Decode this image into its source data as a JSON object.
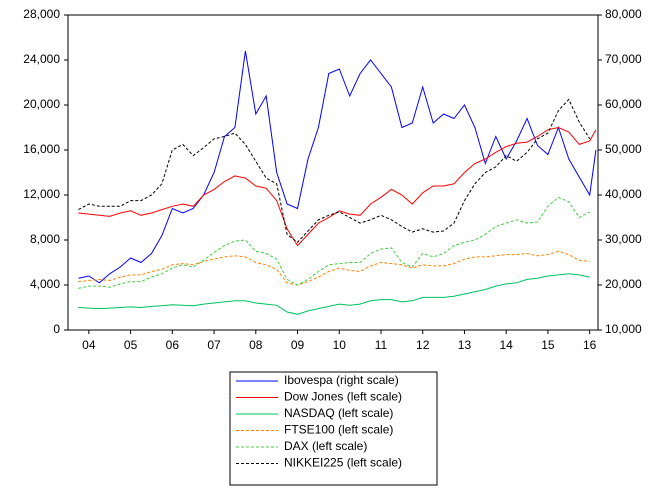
{
  "chart_data": {
    "type": "line",
    "x": [
      2003.75,
      2004,
      2004.25,
      2004.5,
      2004.75,
      2005,
      2005.25,
      2005.5,
      2005.75,
      2006,
      2006.25,
      2006.5,
      2006.75,
      2007,
      2007.25,
      2007.5,
      2007.75,
      2008,
      2008.25,
      2008.5,
      2008.75,
      2009,
      2009.25,
      2009.5,
      2009.75,
      2010,
      2010.25,
      2010.5,
      2010.75,
      2011,
      2011.25,
      2011.5,
      2011.75,
      2012,
      2012.25,
      2012.5,
      2012.75,
      2013,
      2013.25,
      2013.5,
      2013.75,
      2014,
      2014.25,
      2014.5,
      2014.75,
      2015,
      2015.25,
      2015.5,
      2015.75,
      2016,
      2016.15
    ],
    "xlim": [
      2003.5,
      2016.2
    ],
    "xticks": [
      {
        "value": 2004,
        "label": "04"
      },
      {
        "value": 2005,
        "label": "05"
      },
      {
        "value": 2006,
        "label": "06"
      },
      {
        "value": 2007,
        "label": "07"
      },
      {
        "value": 2008,
        "label": "08"
      },
      {
        "value": 2009,
        "label": "09"
      },
      {
        "value": 2010,
        "label": "10"
      },
      {
        "value": 2011,
        "label": "11"
      },
      {
        "value": 2012,
        "label": "12"
      },
      {
        "value": 2013,
        "label": "13"
      },
      {
        "value": 2014,
        "label": "14"
      },
      {
        "value": 2015,
        "label": "15"
      },
      {
        "value": 2016,
        "label": "16"
      }
    ],
    "ylim": [
      0,
      28000
    ],
    "yticks": [
      0,
      {
        "value": 4000,
        "label": "4,000"
      },
      {
        "value": 8000,
        "label": "8,000"
      },
      {
        "value": 12000,
        "label": "12,000"
      },
      {
        "value": 16000,
        "label": "16,000"
      },
      {
        "value": 20000,
        "label": "20,000"
      },
      {
        "value": 24000,
        "label": "24,000"
      },
      {
        "value": 28000,
        "label": "28,000"
      }
    ],
    "y2lim": [
      10000,
      80000
    ],
    "y2ticks": [
      {
        "value": 10000,
        "label": "10,000"
      },
      {
        "value": 20000,
        "label": "20,000"
      },
      {
        "value": 30000,
        "label": "30,000"
      },
      {
        "value": 40000,
        "label": "40,000"
      },
      {
        "value": 50000,
        "label": "50,000"
      },
      {
        "value": 60000,
        "label": "60,000"
      },
      {
        "value": 70000,
        "label": "70,000"
      },
      {
        "value": 80000,
        "label": "80,000"
      }
    ],
    "legend": "bottom",
    "series": [
      {
        "name": "Ibovespa (right scale)",
        "color": "#0000ff",
        "axis": "y2",
        "dash": false,
        "values": [
          21500,
          22000,
          20500,
          22500,
          24000,
          26000,
          25000,
          27000,
          31000,
          37000,
          36000,
          37000,
          40000,
          45000,
          53000,
          55000,
          72000,
          58000,
          62000,
          45000,
          38000,
          37000,
          48000,
          55000,
          67000,
          68000,
          62000,
          67000,
          70000,
          67000,
          64000,
          55000,
          56000,
          64000,
          56000,
          58000,
          57000,
          60000,
          55000,
          47000,
          53000,
          48000,
          52000,
          57000,
          51000,
          49000,
          55000,
          48000,
          44000,
          40000,
          50000
        ]
      },
      {
        "name": "Dow Jones (left scale)",
        "color": "#ff0000",
        "dash": false,
        "values": [
          10400,
          10300,
          10200,
          10100,
          10400,
          10600,
          10200,
          10400,
          10700,
          11000,
          11200,
          11000,
          12000,
          12500,
          13200,
          13700,
          13500,
          12800,
          12600,
          11500,
          9000,
          7500,
          8500,
          9500,
          10000,
          10600,
          10300,
          10200,
          11200,
          11800,
          12500,
          12000,
          11200,
          12200,
          12800,
          12800,
          13000,
          14000,
          14800,
          15200,
          15800,
          16300,
          16600,
          16700,
          17200,
          17800,
          18000,
          17600,
          16500,
          16800,
          17800
        ]
      },
      {
        "name": "NASDAQ (left scale)",
        "color": "#00c060",
        "dash": false,
        "values": [
          2000,
          1950,
          1900,
          1950,
          2000,
          2050,
          2000,
          2100,
          2150,
          2250,
          2200,
          2150,
          2300,
          2400,
          2500,
          2600,
          2600,
          2400,
          2300,
          2200,
          1600,
          1400,
          1700,
          1900,
          2100,
          2300,
          2200,
          2300,
          2600,
          2700,
          2700,
          2500,
          2600,
          2900,
          2900,
          2900,
          3000,
          3200,
          3400,
          3600,
          3900,
          4100,
          4200,
          4500,
          4600,
          4800,
          4900,
          5000,
          4900,
          4700,
          null
        ]
      },
      {
        "name": "FTSE100 (left scale)",
        "color": "#ff8000",
        "dash": true,
        "values": [
          4300,
          4400,
          4500,
          4400,
          4700,
          4900,
          4900,
          5200,
          5400,
          5800,
          5900,
          5800,
          6100,
          6300,
          6500,
          6600,
          6500,
          6000,
          5800,
          5400,
          4200,
          4000,
          4300,
          4700,
          5200,
          5500,
          5300,
          5200,
          5700,
          6000,
          5900,
          5800,
          5500,
          5800,
          5700,
          5700,
          5900,
          6300,
          6500,
          6500,
          6600,
          6700,
          6700,
          6800,
          6600,
          6700,
          7000,
          6700,
          6200,
          6100,
          null
        ]
      },
      {
        "name": "DAX (left scale)",
        "color": "#44cc44",
        "dash": true,
        "values": [
          3700,
          3900,
          3900,
          3800,
          4100,
          4300,
          4300,
          4700,
          5000,
          5500,
          5800,
          5600,
          6200,
          6900,
          7500,
          7900,
          8000,
          7000,
          6800,
          6300,
          4500,
          4000,
          4500,
          5200,
          5800,
          5900,
          6000,
          6000,
          6800,
          7200,
          7300,
          6000,
          5600,
          6800,
          6500,
          6800,
          7500,
          7800,
          8000,
          8500,
          9200,
          9500,
          9800,
          9500,
          9600,
          11000,
          11800,
          11400,
          10000,
          10500,
          null
        ]
      },
      {
        "name": "NIKKEI225 (left scale)",
        "color": "#000000",
        "dash": true,
        "values": [
          10700,
          11200,
          11000,
          11000,
          11000,
          11500,
          11500,
          12000,
          13000,
          16000,
          16500,
          15500,
          16200,
          17000,
          17200,
          17500,
          16500,
          15000,
          13500,
          13000,
          8500,
          7800,
          8800,
          9800,
          10200,
          10500,
          10000,
          9500,
          9800,
          10200,
          9800,
          9200,
          8700,
          9000,
          8700,
          8800,
          9500,
          11500,
          13000,
          14000,
          14500,
          15500,
          15000,
          15800,
          17000,
          17500,
          19500,
          20500,
          18500,
          17000,
          null
        ]
      }
    ]
  }
}
